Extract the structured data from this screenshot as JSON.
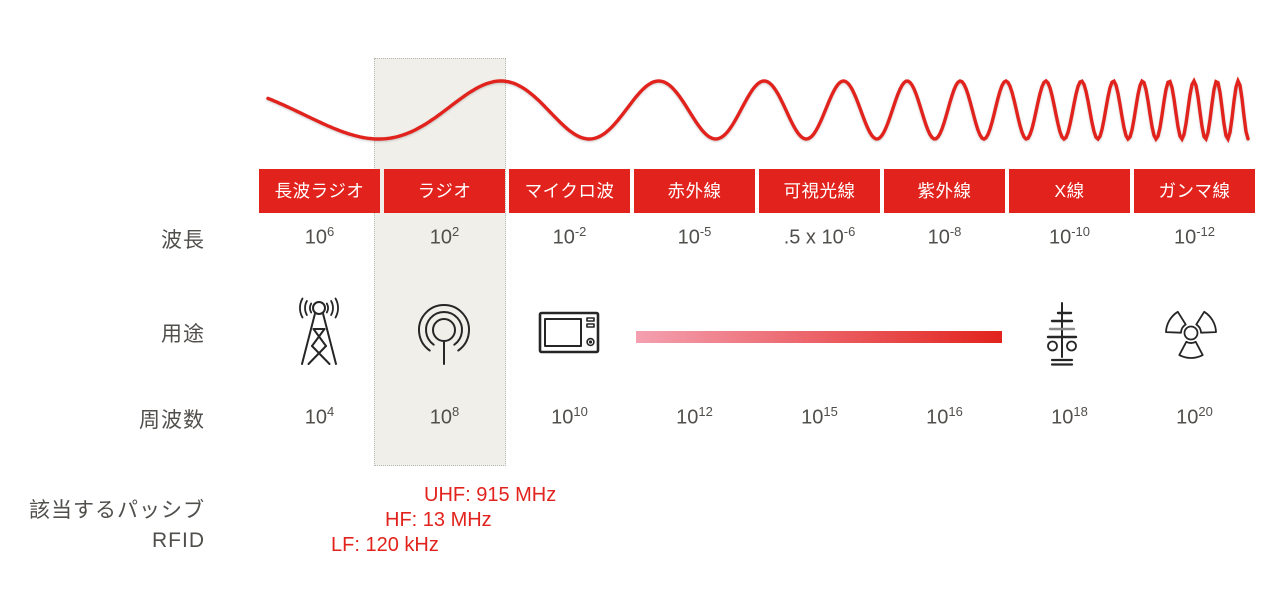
{
  "palette": {
    "red": "#e2231d",
    "pink": "#f4a0b0",
    "text": "#514f4c",
    "icon": "#262626",
    "highlight_bg": "#f0efe9",
    "highlight_border": "#b8b7b0"
  },
  "row_labels": {
    "wavelength": "波長",
    "use": "用途",
    "frequency": "周波数",
    "rfid_line1": "該当するパッシブ",
    "rfid_line2": "RFID"
  },
  "bands": [
    {
      "label": "長波ラジオ",
      "icon": "radio-tower-icon",
      "wavelength": {
        "prefix": "",
        "base": "10",
        "exp": "6"
      },
      "frequency": {
        "base": "10",
        "exp": "4"
      }
    },
    {
      "label": "ラジオ",
      "icon": "broadcast-antenna-icon",
      "wavelength": {
        "prefix": "",
        "base": "10",
        "exp": "2"
      },
      "frequency": {
        "base": "10",
        "exp": "8"
      },
      "highlighted": true
    },
    {
      "label": "マイクロ波",
      "icon": "microwave-oven-icon",
      "wavelength": {
        "prefix": "",
        "base": "10",
        "exp": "-2"
      },
      "frequency": {
        "base": "10",
        "exp": "10"
      }
    },
    {
      "label": "赤外線",
      "icon": "visible-light-gradient",
      "wavelength": {
        "prefix": "",
        "base": "10",
        "exp": "-5"
      },
      "frequency": {
        "base": "10",
        "exp": "12"
      }
    },
    {
      "label": "可視光線",
      "icon": "visible-light-gradient",
      "wavelength": {
        "prefix": ".5 x ",
        "base": "10",
        "exp": "-6"
      },
      "frequency": {
        "base": "10",
        "exp": "15"
      }
    },
    {
      "label": "紫外線",
      "icon": "visible-light-gradient",
      "wavelength": {
        "prefix": "",
        "base": "10",
        "exp": "-8"
      },
      "frequency": {
        "base": "10",
        "exp": "16"
      }
    },
    {
      "label": "X線",
      "icon": "xray-tube-icon",
      "wavelength": {
        "prefix": "",
        "base": "10",
        "exp": "-10"
      },
      "frequency": {
        "base": "10",
        "exp": "18"
      }
    },
    {
      "label": "ガンマ線",
      "icon": "radiation-icon",
      "wavelength": {
        "prefix": "",
        "base": "10",
        "exp": "-12"
      },
      "frequency": {
        "base": "10",
        "exp": "20"
      }
    }
  ],
  "rfid_frequencies": [
    {
      "label": "UHF: 915 MHz"
    },
    {
      "label": "HF: 13 MHz"
    },
    {
      "label": "LF: 120 kHz"
    }
  ]
}
